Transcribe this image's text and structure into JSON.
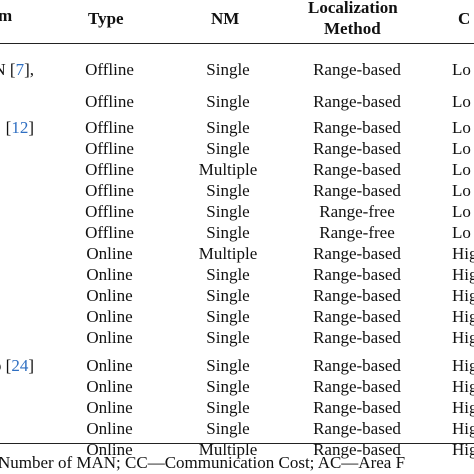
{
  "table": {
    "headers": {
      "first_col": "m",
      "type": "Type",
      "nm": "NM",
      "localization_line1": "Localization",
      "localization_line2": "Method",
      "cc": "C"
    },
    "rows": [
      {
        "first": "N",
        "ref": "7",
        "after": "],",
        "type": "Offline",
        "nm": "Single",
        "loc": "Range-based",
        "cc": "Lo"
      },
      {
        "first": "",
        "ref": "",
        "after": "",
        "type": "Offline",
        "nm": "Single",
        "loc": "Range-based",
        "cc": "Lo"
      },
      {
        "first": "",
        "ref": "12",
        "after": "]",
        "type": "Offline",
        "nm": "Single",
        "loc": "Range-based",
        "cc": "Lo"
      },
      {
        "first": "",
        "ref": "",
        "after": "",
        "type": "Offline",
        "nm": "Single",
        "loc": "Range-based",
        "cc": "Lo"
      },
      {
        "first": "",
        "ref": "",
        "after": "",
        "type": "Offline",
        "nm": "Multiple",
        "loc": "Range-based",
        "cc": "Lo"
      },
      {
        "first": "",
        "ref": "",
        "after": "",
        "type": "Offline",
        "nm": "Single",
        "loc": "Range-based",
        "cc": "Lo"
      },
      {
        "first": "",
        "ref": "",
        "after": "",
        "type": "Offline",
        "nm": "Single",
        "loc": "Range-free",
        "cc": "Lo"
      },
      {
        "first": "",
        "ref": "",
        "after": "",
        "type": "Offline",
        "nm": "Single",
        "loc": "Range-free",
        "cc": "Lo"
      },
      {
        "first": "",
        "ref": "",
        "after": "",
        "type": "Online",
        "nm": "Multiple",
        "loc": "Range-based",
        "cc": "Hig"
      },
      {
        "first": "",
        "ref": "",
        "after": "",
        "type": "Online",
        "nm": "Single",
        "loc": "Range-based",
        "cc": "Hig"
      },
      {
        "first": "",
        "ref": "",
        "after": "",
        "type": "Online",
        "nm": "Single",
        "loc": "Range-based",
        "cc": "Hig"
      },
      {
        "first": "",
        "ref": "",
        "after": "",
        "type": "Online",
        "nm": "Single",
        "loc": "Range-based",
        "cc": "Hig"
      },
      {
        "first": "",
        "ref": "",
        "after": "",
        "type": "Online",
        "nm": "Single",
        "loc": "Range-based",
        "cc": "Hig"
      },
      {
        "first": "o [",
        "ref": "24",
        "after": "]",
        "type": "Online",
        "nm": "Single",
        "loc": "Range-based",
        "cc": "Hig"
      },
      {
        "first": "",
        "ref": "",
        "after": "",
        "type": "Online",
        "nm": "Single",
        "loc": "Range-based",
        "cc": "Hig"
      },
      {
        "first": "",
        "ref": "",
        "after": "",
        "type": "Online",
        "nm": "Single",
        "loc": "Range-based",
        "cc": "Hig"
      },
      {
        "first": "",
        "ref": "",
        "after": "",
        "type": "Online",
        "nm": "Single",
        "loc": "Range-based",
        "cc": "Hig"
      },
      {
        "first": "",
        "ref": "",
        "after": "",
        "type": "Online",
        "nm": "Multiple",
        "loc": "Range-based",
        "cc": "Hig"
      }
    ]
  },
  "colors": {
    "reference": "#2f6fc2",
    "text": "#111111",
    "rule": "#222222"
  },
  "footer": "Number of MAN; CC—Communication Cost; AC—Area F"
}
